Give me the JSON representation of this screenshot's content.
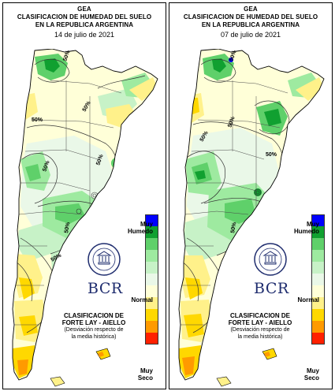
{
  "panels": [
    {
      "title_line1": "GEA",
      "title_line2": "CLASIFICACION DE HUMEDAD DEL SUELO",
      "title_line3": "EN LA REPUBLICA ARGENTINA",
      "date": "14 de julio de 2021",
      "contour_labels": [
        "50%",
        "50%",
        "50%",
        "50%",
        "50%",
        "50%",
        "50%"
      ]
    },
    {
      "title_line1": "GEA",
      "title_line2": "CLASIFICACION DE HUMEDAD DEL SUELO",
      "title_line3": "EN LA REPUBLICA ARGENTINA",
      "date": "07 de julio de 2021",
      "contour_labels": [
        "50%",
        "50%",
        "50%",
        "50%",
        "50%"
      ]
    }
  ],
  "legend": {
    "top_label_1": "Muy",
    "top_label_2": "Humedo",
    "middle_label": "Normal",
    "bottom_label_1": "Muy",
    "bottom_label_2": "Seco",
    "scale_colors": [
      "#0000ff",
      "#10a030",
      "#5fd06a",
      "#9eeaa0",
      "#c7f2c7",
      "#eaf8e8",
      "#ffffd8",
      "#fff18a",
      "#ffd800",
      "#ff9a00",
      "#ff2000"
    ]
  },
  "classification": {
    "line1": "CLASIFICACION DE",
    "line2": "FORTE LAY - AIELLO",
    "line3": "(Desviación respecto de",
    "line4": "la media histórica)"
  },
  "logo": {
    "text": "BCR",
    "seal_text": "BOLSA DE COMERCIO DE ROSARIO"
  }
}
